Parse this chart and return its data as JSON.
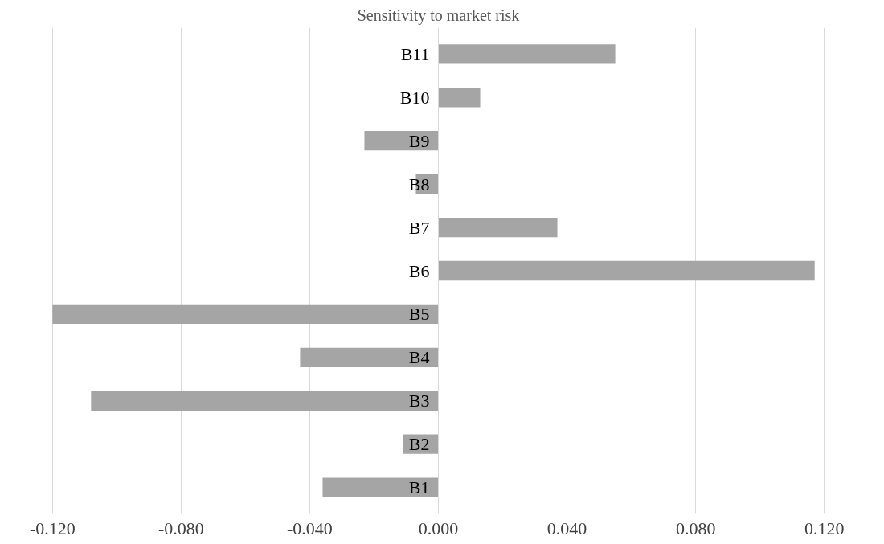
{
  "chart_data": {
    "type": "bar",
    "orientation": "horizontal",
    "title": "Sensitivity to market risk",
    "categories": [
      "B11",
      "B10",
      "B9",
      "B8",
      "B7",
      "B6",
      "B5",
      "B4",
      "B3",
      "B2",
      "B1"
    ],
    "values": [
      0.055,
      0.013,
      -0.023,
      -0.007,
      0.037,
      0.117,
      -0.12,
      -0.043,
      -0.108,
      -0.011,
      -0.036
    ],
    "color": "#a5a5a5",
    "xlim": [
      -0.12,
      0.12
    ],
    "xticks": [
      {
        "value": -0.12,
        "label": "-0.120"
      },
      {
        "value": -0.08,
        "label": "-0.080"
      },
      {
        "value": -0.04,
        "label": "-0.040"
      },
      {
        "value": 0,
        "label": "0.000"
      },
      {
        "value": 0.04,
        "label": "0.040"
      },
      {
        "value": 0.08,
        "label": "0.080"
      },
      {
        "value": 0.12,
        "label": "0.120"
      }
    ],
    "grid": "x"
  }
}
